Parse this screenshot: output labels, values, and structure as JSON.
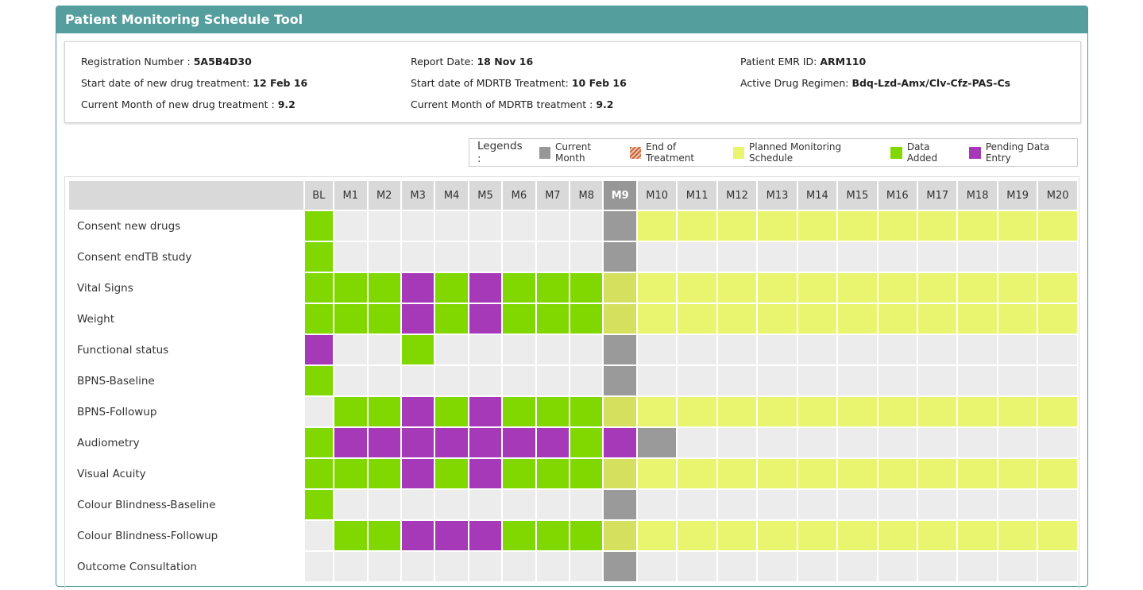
{
  "panel": {
    "title": "Patient Monitoring Schedule Tool"
  },
  "info": {
    "col1": [
      {
        "label": "Registration Number : ",
        "value": "5A5B4D30"
      },
      {
        "label": "Start date of new drug treatment: ",
        "value": "12 Feb 16"
      },
      {
        "label": "Current Month of new drug treatment : ",
        "value": "9.2"
      }
    ],
    "col2": [
      {
        "label": "Report Date: ",
        "value": "18 Nov 16"
      },
      {
        "label": "Start date of MDRTB Treatment: ",
        "value": "10 Feb 16"
      },
      {
        "label": "Current Month of MDRTB treatment : ",
        "value": "9.2"
      }
    ],
    "col3": [
      {
        "label": "Patient EMR ID: ",
        "value": "ARM110"
      },
      {
        "label": "Active Drug Regimen: ",
        "value": "Bdq-Lzd-Amx/Clv-Cfz-PAS-Cs"
      }
    ]
  },
  "legend": {
    "title": "Legends :",
    "items": [
      {
        "label": "Current Month",
        "color": "#979797",
        "icon": "solid"
      },
      {
        "label": "End of Treatment",
        "color": "#c8643c",
        "icon": "hatched"
      },
      {
        "label": "Planned Monitoring Schedule",
        "color": "#e9f56e",
        "icon": "solid"
      },
      {
        "label": "Data Added",
        "color": "#80d800",
        "icon": "solid"
      },
      {
        "label": "Pending Data Entry",
        "color": "#a639b8",
        "icon": "solid"
      }
    ]
  },
  "schedule": {
    "current_month": "M9",
    "months": [
      "BL",
      "M1",
      "M2",
      "M3",
      "M4",
      "M5",
      "M6",
      "M7",
      "M8",
      "M9",
      "M10",
      "M11",
      "M12",
      "M13",
      "M14",
      "M15",
      "M16",
      "M17",
      "M18",
      "M19",
      "M20"
    ],
    "rows": [
      {
        "name": "Consent new drugs",
        "cells": "geeeeeeeecyyyyyyyyyyy"
      },
      {
        "name": "Consent endTB study",
        "cells": "geeeeeeeeceeeeeeeeeee"
      },
      {
        "name": "Vital Signs",
        "cells": "gggpgpggg*yyyyyyyyyyy"
      },
      {
        "name": "Weight",
        "cells": "gggpgpggg*yyyyyyyyyyy"
      },
      {
        "name": "Functional status",
        "cells": "peegeeeeeceeeeeeeeeee"
      },
      {
        "name": "BPNS-Baseline",
        "cells": "geeeeeeeeceeeeeeeeeee"
      },
      {
        "name": "BPNS-Followup",
        "cells": "eggpgpggg*yyyyyyyyyyy"
      },
      {
        "name": "Audiometry",
        "cells": "gpppppppgpceeeeeeeeee"
      },
      {
        "name": "Visual Acuity",
        "cells": "gggpgpggg*yyyyyyyyyyy"
      },
      {
        "name": "Colour Blindness-Baseline",
        "cells": "geeeeeeeeceeeeeeeeeee"
      },
      {
        "name": "Colour Blindness-Followup",
        "cells": "eggpppggg*yyyyyyyyyyy"
      },
      {
        "name": "Outcome Consultation",
        "cells": "eeeeeeeeeceeeeeeeeeee"
      }
    ]
  }
}
